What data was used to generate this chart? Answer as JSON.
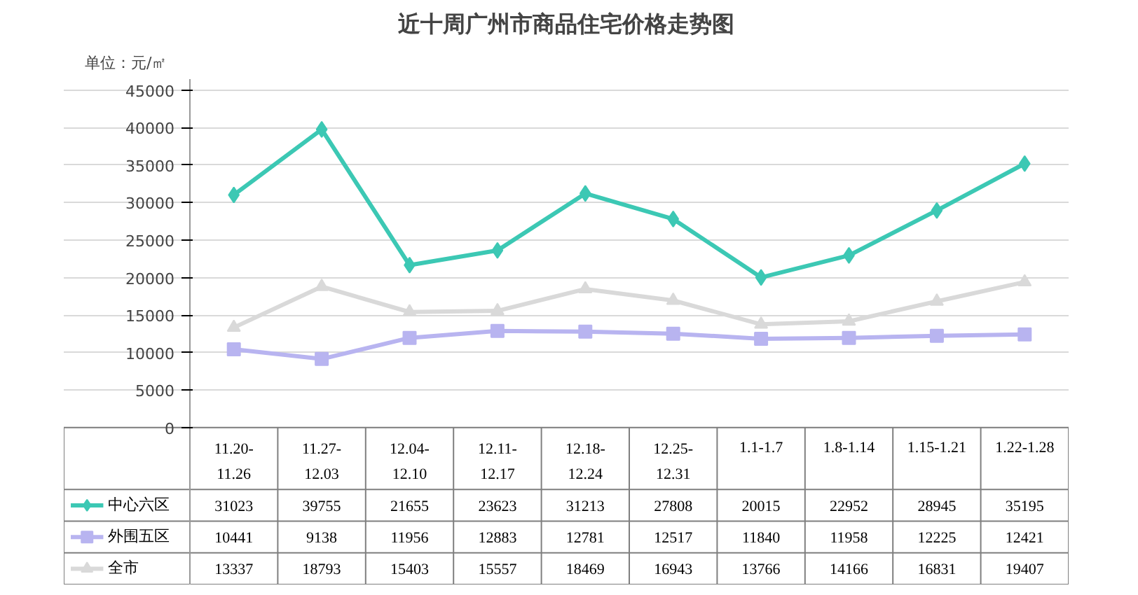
{
  "chart_data": {
    "type": "line",
    "title": "近十周广州市商品住宅价格走势图",
    "ylabel": "单位：元/㎡",
    "categories": [
      "11.20-\n11.26",
      "11.27-\n12.03",
      "12.04-\n12.10",
      "12.11-\n12.17",
      "12.18-\n12.24",
      "12.25-\n12.31",
      "1.1-1.7",
      "1.8-1.14",
      "1.15-1.21",
      "1.22-1.28"
    ],
    "series": [
      {
        "name": "中心六区",
        "color": "#3cc8b4",
        "marker": "diamond",
        "values": [
          31023,
          39755,
          21655,
          23623,
          31213,
          27808,
          20015,
          22952,
          28945,
          35195
        ]
      },
      {
        "name": "外围五区",
        "color": "#b8b4f0",
        "marker": "square",
        "values": [
          10441,
          9138,
          11956,
          12883,
          12781,
          12517,
          11840,
          11958,
          12225,
          12421
        ]
      },
      {
        "name": "全市",
        "color": "#d9d9d9",
        "marker": "triangle",
        "values": [
          13337,
          18793,
          15403,
          15557,
          18469,
          16943,
          13766,
          14166,
          16831,
          19407
        ]
      }
    ],
    "ylim": [
      0,
      45000
    ],
    "yticks": [
      0,
      5000,
      10000,
      15000,
      20000,
      25000,
      30000,
      35000,
      40000,
      45000
    ],
    "grid": "y",
    "legend": "bottom",
    "data_labels": true
  }
}
